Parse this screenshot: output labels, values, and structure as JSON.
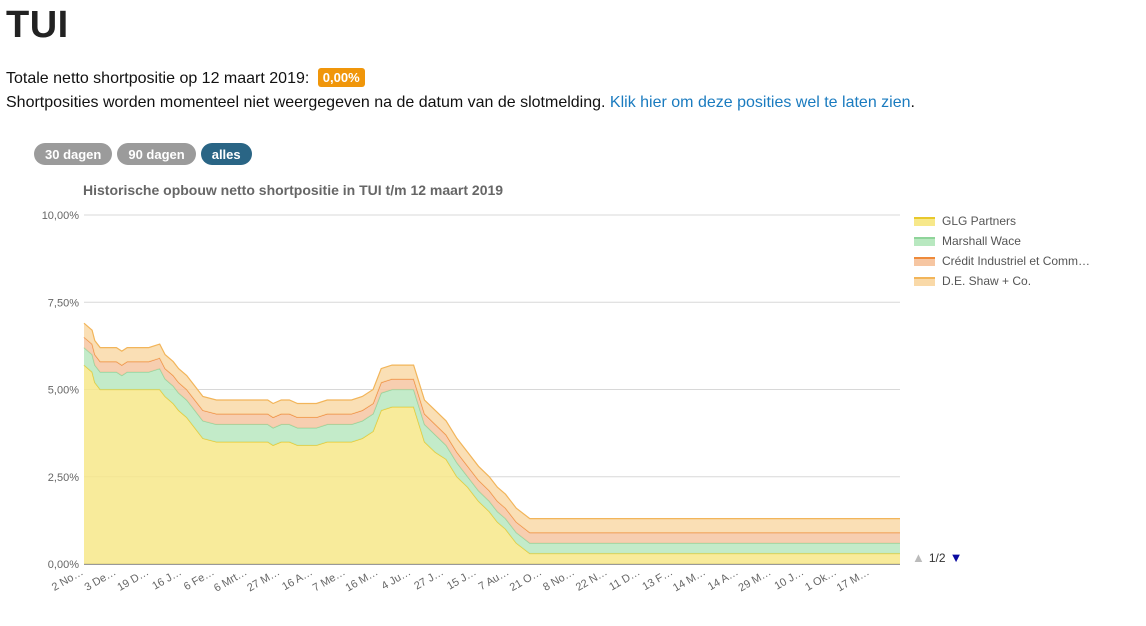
{
  "page": {
    "title": "TUI",
    "total_prefix": "Totale netto shortpositie op 12 maart 2019:",
    "total_value": "0,00%",
    "notice": "Shortposities worden momenteel niet weergegeven na de datum van de slotmelding.",
    "notice_link": "Klik hier om deze posities wel te laten zien",
    "notice_suffix": "."
  },
  "range_buttons": [
    "30 dagen",
    "90 dagen",
    "alles"
  ],
  "legend_pager": "1/2",
  "colors": {
    "badge": "#f0960a",
    "link": "#1a7bbf",
    "active_button": "#2a6585",
    "grid": "#d8d8d8"
  },
  "chart_data": {
    "type": "area",
    "stacked": true,
    "title": "Historische opbouw netto shortpositie in TUI t/m 12 maart 2019",
    "ylabel": "",
    "xlabel": "",
    "ylim": [
      0,
      10
    ],
    "yticks": [
      0,
      2.5,
      5,
      7.5,
      10
    ],
    "ytick_labels": [
      "0,00%",
      "2,50%",
      "5,00%",
      "7,50%",
      "10,00%"
    ],
    "xtick_labels": [
      "2 No…",
      "3 De…",
      "19 D…",
      "16 J…",
      "6 Fe…",
      "6 Mrt…",
      "27 M…",
      "16 A…",
      "7 Me…",
      "16 M…",
      "4 Ju…",
      "27 J…",
      "15 J…",
      "7 Au…",
      "21 O…",
      "8 No…",
      "22 N…",
      "11 D…",
      "13 F…",
      "14 M…",
      "14 A…",
      "29 M…",
      "10 J…",
      "1 Ok…",
      "17 M…"
    ],
    "x": [
      0,
      3,
      4,
      6,
      8,
      10,
      12,
      14,
      16,
      20,
      24,
      28,
      30,
      33,
      35,
      38,
      40,
      44,
      49,
      55,
      60,
      63,
      65,
      68,
      70,
      73,
      76,
      79,
      82,
      86,
      90,
      94,
      99,
      103,
      107,
      110,
      114,
      118,
      122,
      126,
      130,
      134,
      138,
      142,
      146,
      150,
      153,
      156,
      160,
      165,
      170,
      175,
      180,
      185,
      190,
      195,
      200,
      205,
      210,
      215,
      220,
      225,
      230,
      234,
      238,
      242,
      246,
      250,
      254,
      258,
      262,
      266,
      270,
      274,
      276,
      278,
      279,
      280,
      282,
      284,
      286,
      288,
      290,
      292,
      294,
      296,
      298,
      300,
      302
    ],
    "series": [
      {
        "name": "GLG Partners",
        "color": "#f7e88a",
        "stroke": "#e8c82c",
        "values": [
          5.7,
          5.5,
          5.2,
          5.0,
          5.0,
          5.0,
          5.0,
          5.0,
          5.0,
          5.0,
          5.0,
          5.0,
          4.8,
          4.6,
          4.4,
          4.2,
          4.0,
          3.6,
          3.5,
          3.5,
          3.5,
          3.5,
          3.5,
          3.5,
          3.4,
          3.5,
          3.5,
          3.4,
          3.4,
          3.4,
          3.5,
          3.5,
          3.5,
          3.6,
          3.8,
          4.4,
          4.5,
          4.5,
          4.5,
          3.5,
          3.2,
          3.0,
          2.5,
          2.2,
          1.8,
          1.5,
          1.2,
          1.0,
          0.6,
          0.3,
          0.3,
          0.3,
          0.3,
          0.3,
          0.3,
          0.3,
          0.3,
          0.3,
          0.3,
          0.3,
          0.3,
          0.3,
          0.3,
          0.3,
          0.3,
          0.3,
          0.3,
          0.3,
          0.3,
          0.3,
          0.3,
          0.3,
          0.3,
          0.3,
          0.3,
          0.3,
          0.3,
          0.3,
          0.3,
          0.3,
          0.3,
          0.3,
          0.3,
          0.3,
          0.3,
          0.3,
          0.3,
          0.3,
          0.3
        ]
      },
      {
        "name": "Marshall Wace",
        "color": "#b8e8c0",
        "stroke": "#8fd49a",
        "values": [
          0.5,
          0.5,
          0.5,
          0.5,
          0.5,
          0.5,
          0.5,
          0.4,
          0.5,
          0.5,
          0.5,
          0.6,
          0.5,
          0.5,
          0.5,
          0.5,
          0.5,
          0.5,
          0.5,
          0.5,
          0.5,
          0.5,
          0.5,
          0.5,
          0.5,
          0.5,
          0.5,
          0.5,
          0.5,
          0.5,
          0.5,
          0.5,
          0.5,
          0.5,
          0.5,
          0.5,
          0.5,
          0.5,
          0.5,
          0.5,
          0.5,
          0.4,
          0.4,
          0.3,
          0.3,
          0.3,
          0.3,
          0.3,
          0.3,
          0.3,
          0.3,
          0.3,
          0.3,
          0.3,
          0.3,
          0.3,
          0.3,
          0.3,
          0.3,
          0.3,
          0.3,
          0.3,
          0.3,
          0.3,
          0.3,
          0.3,
          0.3,
          0.3,
          0.3,
          0.3,
          0.3,
          0.3,
          0.3,
          0.3,
          0.3,
          0.3,
          0.3,
          0.3,
          0.3,
          0.3,
          0.3,
          0.3,
          0.3,
          0.3,
          0.3,
          0.3,
          0.3,
          0.3,
          0.3
        ]
      },
      {
        "name": "Crédit Industriel et Comm…",
        "color": "#f6c6a2",
        "stroke": "#ee8a3a",
        "values": [
          0.3,
          0.3,
          0.3,
          0.3,
          0.3,
          0.3,
          0.3,
          0.3,
          0.3,
          0.3,
          0.3,
          0.3,
          0.3,
          0.3,
          0.3,
          0.3,
          0.3,
          0.3,
          0.3,
          0.3,
          0.3,
          0.3,
          0.3,
          0.3,
          0.3,
          0.3,
          0.3,
          0.3,
          0.3,
          0.3,
          0.3,
          0.3,
          0.3,
          0.3,
          0.3,
          0.3,
          0.3,
          0.3,
          0.3,
          0.3,
          0.3,
          0.3,
          0.3,
          0.3,
          0.3,
          0.3,
          0.3,
          0.3,
          0.3,
          0.3,
          0.3,
          0.3,
          0.3,
          0.3,
          0.3,
          0.3,
          0.3,
          0.3,
          0.3,
          0.3,
          0.3,
          0.3,
          0.3,
          0.3,
          0.3,
          0.3,
          0.3,
          0.3,
          0.3,
          0.3,
          0.3,
          0.3,
          0.3,
          0.3,
          0.3,
          0.3,
          0.3,
          0.3,
          0.3,
          0.3,
          0.3,
          0.3,
          0.3,
          0.3,
          0.3,
          0.3,
          0.3,
          0.3,
          0.3
        ]
      },
      {
        "name": "D.E. Shaw + Co.",
        "color": "#f9d9a8",
        "stroke": "#f2b55a",
        "values": [
          0.4,
          0.4,
          0.4,
          0.4,
          0.4,
          0.4,
          0.4,
          0.4,
          0.4,
          0.4,
          0.4,
          0.4,
          0.4,
          0.4,
          0.4,
          0.4,
          0.4,
          0.4,
          0.4,
          0.4,
          0.4,
          0.4,
          0.4,
          0.4,
          0.4,
          0.4,
          0.4,
          0.4,
          0.4,
          0.4,
          0.4,
          0.4,
          0.4,
          0.4,
          0.4,
          0.4,
          0.4,
          0.4,
          0.4,
          0.4,
          0.4,
          0.4,
          0.4,
          0.4,
          0.4,
          0.4,
          0.4,
          0.4,
          0.4,
          0.4,
          0.4,
          0.4,
          0.4,
          0.4,
          0.4,
          0.4,
          0.4,
          0.4,
          0.4,
          0.4,
          0.4,
          0.4,
          0.4,
          0.4,
          0.4,
          0.4,
          0.4,
          0.4,
          0.4,
          0.4,
          0.4,
          0.4,
          0.4,
          0.4,
          0.4,
          0.4,
          0.4,
          0.4,
          0.4,
          0.4,
          0.4,
          0.4,
          0.4,
          0.4,
          0.4,
          0.4,
          0.4,
          0.4,
          0.4
        ]
      }
    ]
  }
}
